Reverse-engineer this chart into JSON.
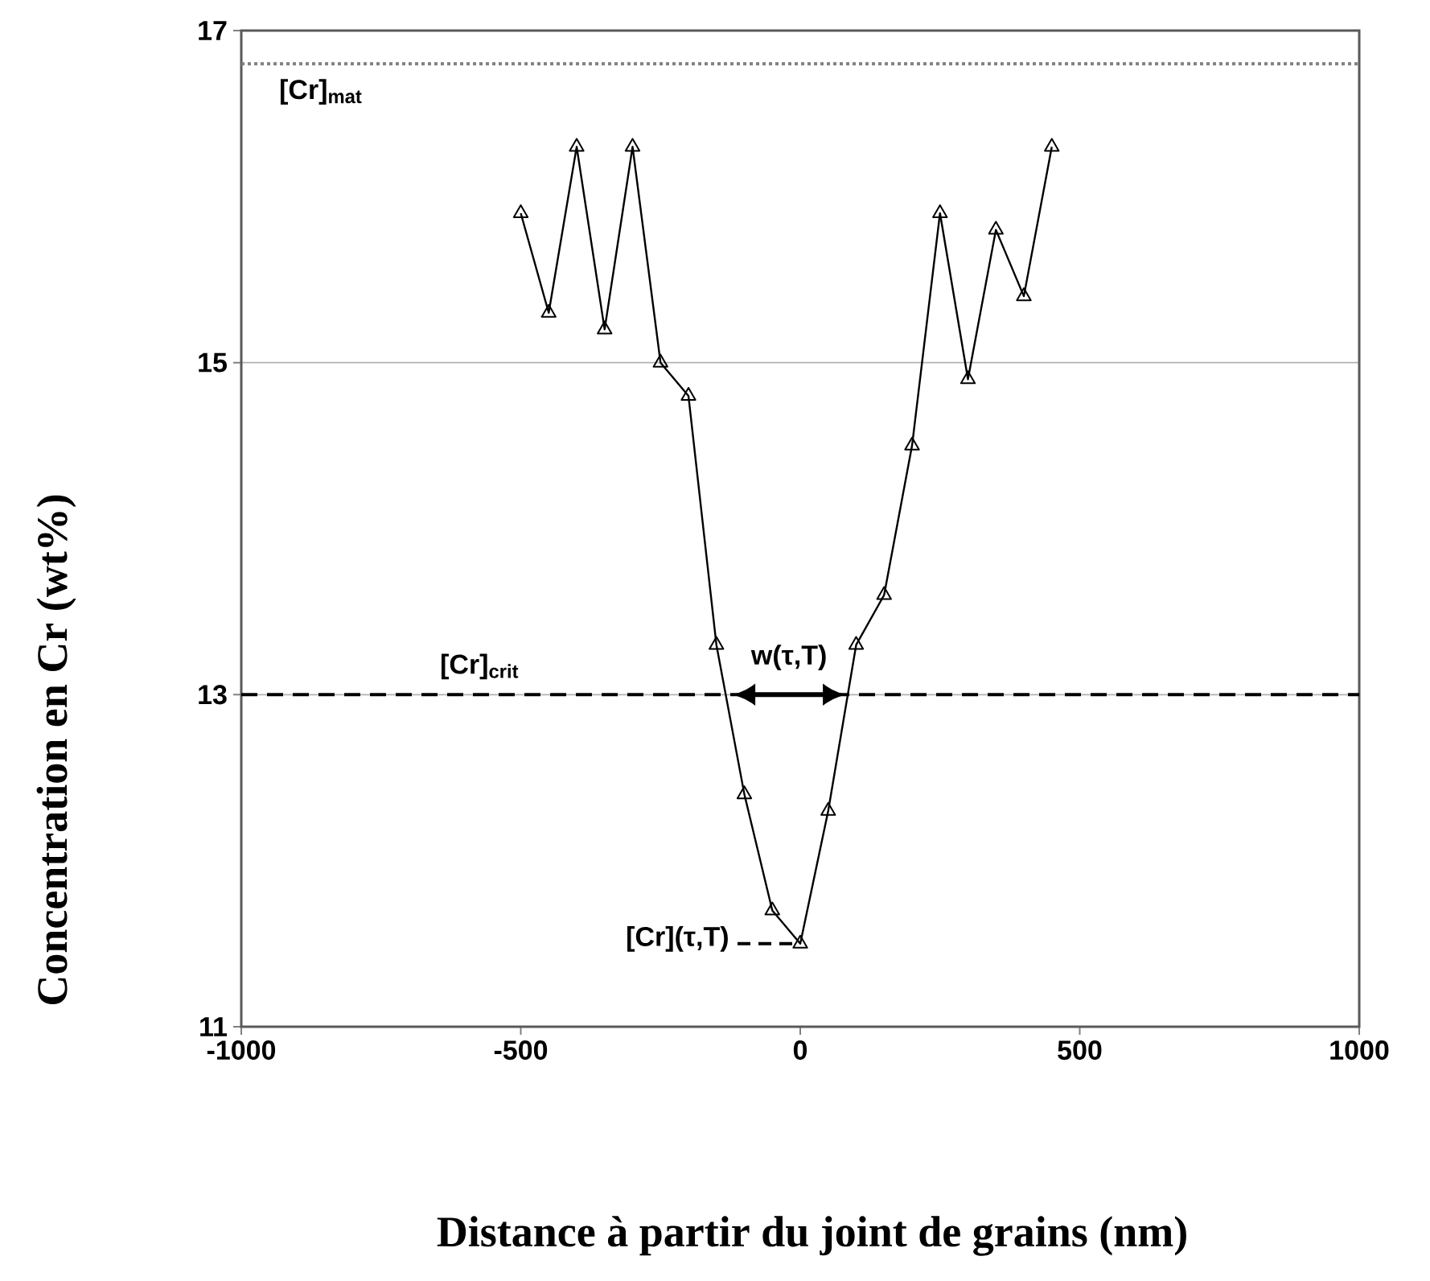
{
  "chart_data": {
    "type": "line",
    "xlabel": "Distance à partir du joint de grains (nm)",
    "ylabel": "Concentration en Cr (wt%)",
    "x": [
      -500,
      -450,
      -400,
      -350,
      -300,
      -250,
      -200,
      -150,
      -100,
      -50,
      0,
      50,
      100,
      150,
      200,
      250,
      300,
      350,
      400,
      450
    ],
    "series": [
      {
        "color": "#000000",
        "values": [
          15.9,
          15.3,
          16.3,
          15.2,
          16.3,
          15.0,
          14.8,
          13.3,
          12.4,
          11.7,
          11.5,
          12.3,
          13.3,
          13.6,
          14.5,
          15.9,
          14.9,
          15.8,
          15.4,
          16.3
        ]
      }
    ],
    "marker": "triangle",
    "line_style": "solid",
    "grid": "y",
    "xlim": [
      -1000,
      1000
    ],
    "xticks": [
      -1000,
      -500,
      0,
      500,
      1000
    ],
    "ylim": [
      11,
      17
    ],
    "yticks": [
      11,
      13,
      15,
      17
    ],
    "ref_lines": [
      {
        "axis": "y",
        "value": 16.8,
        "label": "[Cr]$_{mat}$",
        "line_style": "dotted",
        "color": "#808080"
      },
      {
        "axis": "y",
        "value": 13,
        "label": "[Cr]$_{crit}$",
        "line_style": "dashed",
        "color": "#000000"
      }
    ],
    "annotations": [
      {
        "text": "w(τ,T)",
        "x": -20,
        "y": 13
      },
      {
        "text": "[Cr](τ,T)",
        "x": 0,
        "y": 11.5
      }
    ]
  }
}
